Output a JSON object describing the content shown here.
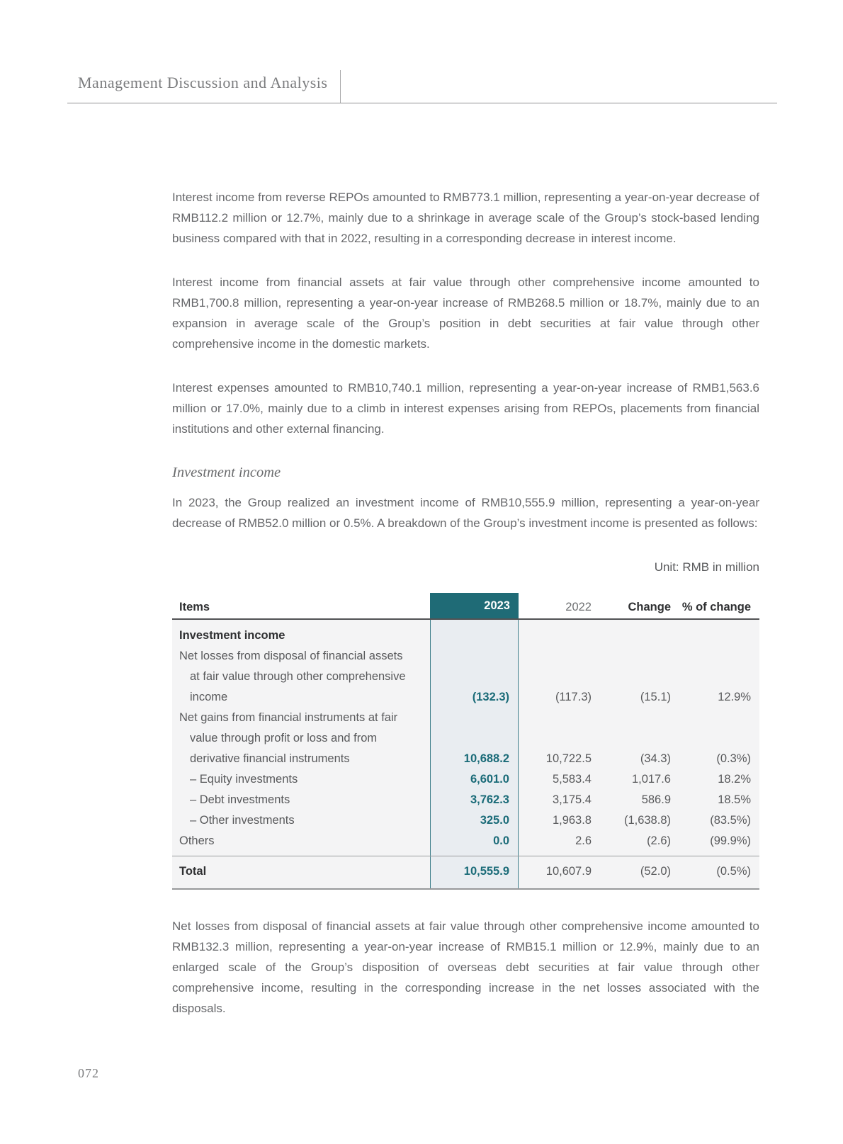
{
  "header": {
    "title": "Management Discussion and Analysis"
  },
  "paragraphs": {
    "p1": "Interest income from reverse REPOs amounted to RMB773.1 million, representing a year-on-year decrease of RMB112.2 million or 12.7%, mainly due to a shrinkage in average scale of the Group’s stock-based lending business compared with that in 2022, resulting in a corresponding decrease in interest income.",
    "p2": "Interest income from financial assets at fair value through other comprehensive income amounted to RMB1,700.8 million, representing a year-on-year increase of RMB268.5 million or 18.7%, mainly due to an expansion in average scale of the Group’s position in debt securities at fair value through other comprehensive income in the domestic markets.",
    "p3": "Interest expenses amounted to RMB10,740.1 million, representing a year-on-year increase of RMB1,563.6 million or 17.0%, mainly due to a climb in interest expenses arising from REPOs, placements from financial institutions and other external financing."
  },
  "investment_section": {
    "heading": "Investment income",
    "intro": "In 2023, the Group realized an investment income of RMB10,555.9 million, representing a year-on-year decrease of RMB52.0 million or 0.5%. A breakdown of the Group’s investment income is presented as follows:"
  },
  "table": {
    "unit_note": "Unit: RMB in million",
    "columns": {
      "items": "Items",
      "y2023": "2023",
      "y2022": "2022",
      "change": "Change",
      "pct_change": "% of change"
    },
    "rows": [
      {
        "label_lines": [
          "Investment income"
        ],
        "values": [
          "",
          "",
          "",
          ""
        ]
      },
      {
        "label_lines": [
          "Net losses from disposal of financial assets",
          "at fair value through other comprehensive",
          "income"
        ],
        "values": [
          "(132.3)",
          "(117.3)",
          "(15.1)",
          "12.9%"
        ]
      },
      {
        "label_lines": [
          "Net gains from financial instruments at fair",
          "value through profit or loss and from",
          "derivative financial instruments"
        ],
        "values": [
          "10,688.2",
          "10,722.5",
          "(34.3)",
          "(0.3%)"
        ]
      },
      {
        "label_lines": [
          "– Equity investments"
        ],
        "values": [
          "6,601.0",
          "5,583.4",
          "1,017.6",
          "18.2%"
        ]
      },
      {
        "label_lines": [
          "– Debt investments"
        ],
        "values": [
          "3,762.3",
          "3,175.4",
          "586.9",
          "18.5%"
        ]
      },
      {
        "label_lines": [
          "– Other investments"
        ],
        "values": [
          "325.0",
          "1,963.8",
          "(1,638.8)",
          "(83.5%)"
        ]
      },
      {
        "label_lines": [
          "Others"
        ],
        "values": [
          "0.0",
          "2.6",
          "(2.6)",
          "(99.9%)"
        ]
      }
    ],
    "total": {
      "label": "Total",
      "values": [
        "10,555.9",
        "10,607.9",
        "(52.0)",
        "(0.5%)"
      ]
    }
  },
  "closing_paragraph": "Net losses from disposal of financial assets at fair value through other comprehensive income amounted to RMB132.3 million, representing a year-on-year increase of RMB15.1 million or 12.9%, mainly due to an enlarged scale of the Group’s disposition of overseas debt securities at fair value through other comprehensive income, resulting in the corresponding increase in the net losses associated with the disposals.",
  "footer": {
    "page_number": "072"
  },
  "colors": {
    "accent_teal": "#1f6b76",
    "teal_value_text": "#1a6b78",
    "band_background": "#e9edf1",
    "table_background": "#f4f4f5"
  }
}
